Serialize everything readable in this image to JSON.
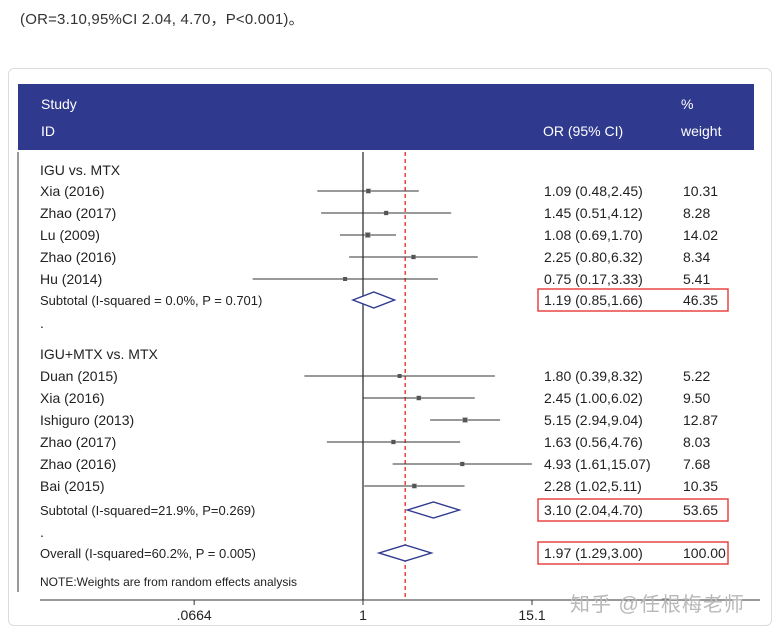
{
  "caption": "(OR=3.10,95%CI 2.04, 4.70，P<0.001)。",
  "header": {
    "study": "Study",
    "id": "ID",
    "or_label": "OR (95% CI)",
    "pct": "%",
    "weight": "weight"
  },
  "note": "NOTE:Weights are from random effects analysis",
  "watermark": "知乎 @任根梅老师",
  "chart_data": {
    "type": "forest",
    "x_scale": "log",
    "x_ticks": [
      ".0664",
      "1",
      "15.1"
    ],
    "x_tick_values": [
      0.0664,
      1,
      15.1
    ],
    "reference_line": 1,
    "dashed_line": 1.97,
    "groups": [
      {
        "label": "IGU vs. MTX",
        "studies": [
          {
            "id": "Xia (2016)",
            "or": 1.09,
            "lo": 0.48,
            "hi": 2.45,
            "ci_text": "1.09 (0.48,2.45)",
            "weight": "10.31"
          },
          {
            "id": "Zhao (2017)",
            "or": 1.45,
            "lo": 0.51,
            "hi": 4.12,
            "ci_text": "1.45 (0.51,4.12)",
            "weight": "8.28"
          },
          {
            "id": "Lu (2009)",
            "or": 1.08,
            "lo": 0.69,
            "hi": 1.7,
            "ci_text": "1.08 (0.69,1.70)",
            "weight": "14.02"
          },
          {
            "id": "Zhao (2016)",
            "or": 2.25,
            "lo": 0.8,
            "hi": 6.32,
            "ci_text": "2.25 (0.80,6.32)",
            "weight": "8.34"
          },
          {
            "id": "Hu (2014)",
            "or": 0.75,
            "lo": 0.17,
            "hi": 3.33,
            "ci_text": "0.75 (0.17,3.33)",
            "weight": "5.41"
          }
        ],
        "subtotal": {
          "label": "Subtotal  (I-squared = 0.0%, P = 0.701)",
          "or": 1.19,
          "lo": 0.85,
          "hi": 1.66,
          "ci_text": "1.19 (0.85,1.66)",
          "weight": "46.35"
        }
      },
      {
        "label": "IGU+MTX vs. MTX",
        "studies": [
          {
            "id": "Duan (2015)",
            "or": 1.8,
            "lo": 0.39,
            "hi": 8.32,
            "ci_text": "1.80 (0.39,8.32)",
            "weight": "5.22"
          },
          {
            "id": "Xia (2016)",
            "or": 2.45,
            "lo": 1.0,
            "hi": 6.02,
            "ci_text": "2.45 (1.00,6.02)",
            "weight": "9.50"
          },
          {
            "id": "Ishiguro (2013)",
            "or": 5.15,
            "lo": 2.94,
            "hi": 9.04,
            "ci_text": "5.15 (2.94,9.04)",
            "weight": "12.87"
          },
          {
            "id": "Zhao (2017)",
            "or": 1.63,
            "lo": 0.56,
            "hi": 4.76,
            "ci_text": "1.63 (0.56,4.76)",
            "weight": "8.03"
          },
          {
            "id": "Zhao (2016)",
            "or": 4.93,
            "lo": 1.61,
            "hi": 15.07,
            "ci_text": "4.93 (1.61,15.07)",
            "weight": "7.68"
          },
          {
            "id": "Bai (2015)",
            "or": 2.28,
            "lo": 1.02,
            "hi": 5.11,
            "ci_text": "2.28 (1.02,5.11)",
            "weight": "10.35"
          }
        ],
        "subtotal": {
          "label": "Subtotal (I-squared=21.9%, P=0.269)",
          "or": 3.1,
          "lo": 2.04,
          "hi": 4.7,
          "ci_text": "3.10 (2.04,4.70)",
          "weight": "53.65"
        }
      }
    ],
    "overall": {
      "label": "Overall  (I-squared=60.2%, P = 0.005)",
      "or": 1.97,
      "lo": 1.29,
      "hi": 3.0,
      "ci_text": "1.97 (1.29,3.00)",
      "weight": "100.00"
    },
    "colors": {
      "header": "#2f3a8f",
      "diamond": "#2f3a8f",
      "dashed": "#e53935",
      "highlight_box": "#e53935",
      "marker": "#555555"
    }
  }
}
